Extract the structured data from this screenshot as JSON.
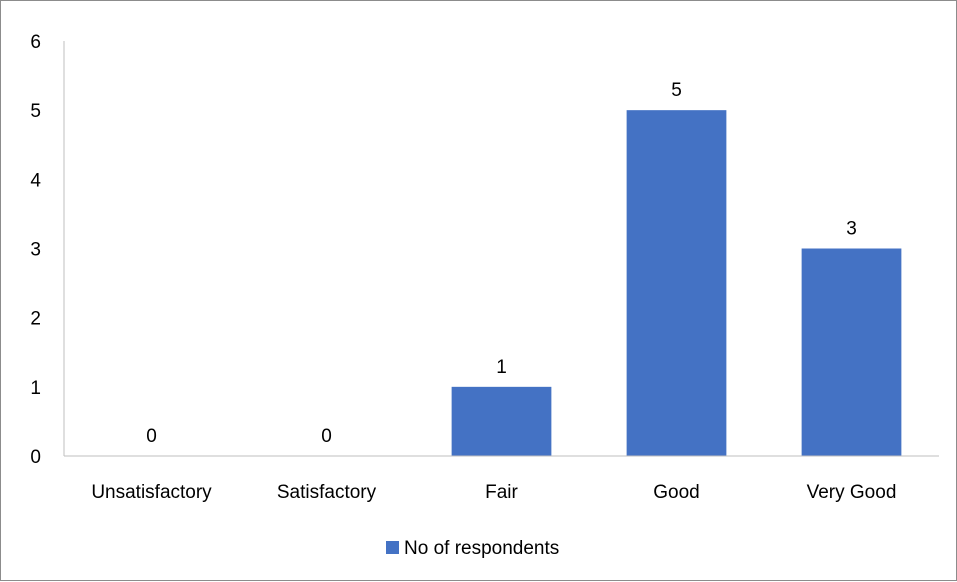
{
  "chart_data": {
    "type": "bar",
    "categories": [
      "Unsatisfactory",
      "Satisfactory",
      "Fair",
      "Good",
      "Very Good"
    ],
    "series": [
      {
        "name": "No of respondents",
        "values": [
          0,
          0,
          1,
          5,
          3
        ],
        "color": "#4472C4"
      }
    ],
    "ylim": [
      0,
      6
    ],
    "yticks": [
      0,
      1,
      2,
      3,
      4,
      5,
      6
    ],
    "data_labels": true,
    "grid": false,
    "legend": "bottom"
  }
}
